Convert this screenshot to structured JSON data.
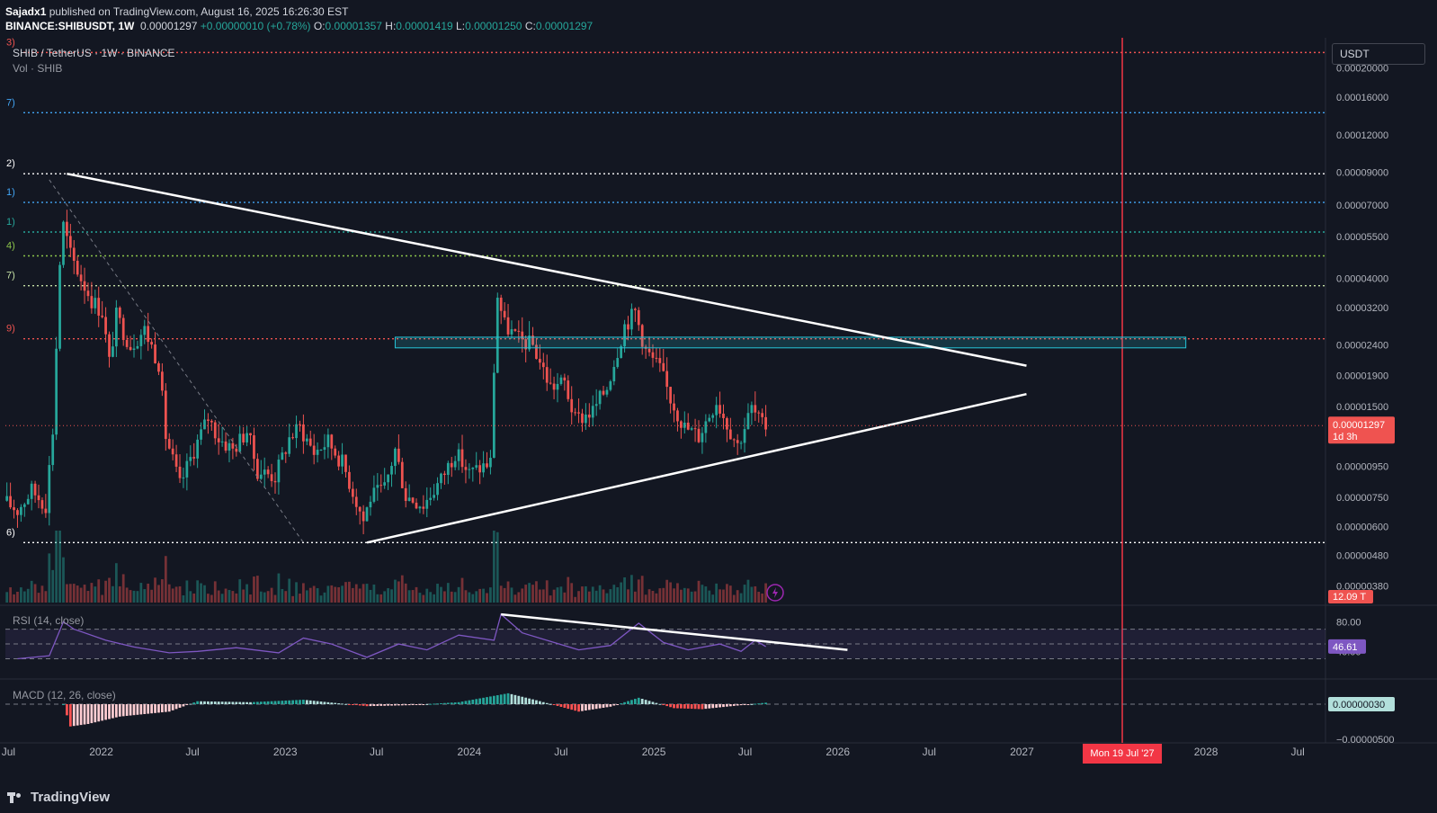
{
  "header": {
    "publisher": "Sajadx1",
    "published_text": "published on TradingView.com, August 16, 2025 16:26:30 EST",
    "symbol_line": "BINANCE:SHIBUSDT, 1W",
    "last_price": "0.00001297",
    "change": "+0.00000010 (+0.78%)",
    "o_label": "O:",
    "o_value": "0.00001357",
    "h_label": "H:",
    "h_value": "0.00001419",
    "l_label": "L:",
    "l_value": "0.00001250",
    "c_label": "C:",
    "c_value": "0.00001297"
  },
  "pane_legend": {
    "title": "SHIB / TetherUS · 1W · BINANCE",
    "volume": "Vol · SHIB",
    "unit_button": "USDT",
    "rsi": "RSI (14, close)",
    "macd": "MACD (12, 26, close)"
  },
  "colors": {
    "background": "#131722",
    "up": "#26a69a",
    "down": "#ef5350",
    "trendline": "#ffffff",
    "rsi_line": "#7e57c2",
    "zone": "#26c6da",
    "date_marker": "#f23645"
  },
  "level_labels": [
    {
      "text": "3)",
      "price": 0.000225,
      "color": "#ef5350",
      "dash_color": "#ef5350"
    },
    {
      "text": "7)",
      "price": 0.000142,
      "color": "#42a5f5",
      "dash_color": "#42a5f5"
    },
    {
      "text": "2)",
      "price": 8.9e-05,
      "color": "#ffffff",
      "dash_color": "#ffffff"
    },
    {
      "text": "1)",
      "price": 7.15e-05,
      "color": "#42a5f5",
      "dash_color": "#42a5f5"
    },
    {
      "text": "1)",
      "price": 5.7e-05,
      "color": "#26a69a",
      "dash_color": "#26a69a"
    },
    {
      "text": "4)",
      "price": 4.75e-05,
      "color": "#8bc34a",
      "dash_color": "#8bc34a"
    },
    {
      "text": "7)",
      "price": 3.78e-05,
      "color": "#c5e1a5",
      "dash_color": "#c5e1a5"
    },
    {
      "text": "9)",
      "price": 2.52e-05,
      "color": "#ef5350",
      "dash_color": "#ef5350"
    },
    {
      "text": "6)",
      "price": 5.3e-06,
      "color": "#ffffff",
      "dash_color": "#ffffff"
    }
  ],
  "chart_data": {
    "type": "candlestick",
    "symbol": "SHIB / TetherUS",
    "timeframe": "1W",
    "exchange": "BINANCE",
    "y_scale": "log",
    "y_ticks": [
      "0.00020000",
      "0.00016000",
      "0.00012000",
      "0.00009000",
      "0.00007000",
      "0.00005500",
      "0.00004000",
      "0.00003200",
      "0.00002400",
      "0.00001900",
      "0.00001500",
      "0.00000950",
      "0.00000750",
      "0.00000600",
      "0.00000480",
      "0.00000380"
    ],
    "y_tick_values": [
      0.0002,
      0.00016,
      0.00012,
      9e-05,
      7e-05,
      5.5e-05,
      4e-05,
      3.2e-05,
      2.4e-05,
      1.9e-05,
      1.5e-05,
      9.5e-06,
      7.5e-06,
      6e-06,
      4.8e-06,
      3.8e-06
    ],
    "x_ticks": [
      "Jul",
      "2022",
      "Jul",
      "2023",
      "Jul",
      "2024",
      "Jul",
      "2025",
      "Jul",
      "2026",
      "Jul",
      "2027",
      "2028",
      "Jul"
    ],
    "x_tick_dates": [
      "2021-07-01",
      "2022-01-01",
      "2022-07-01",
      "2023-01-01",
      "2023-07-01",
      "2024-01-01",
      "2024-07-01",
      "2025-01-01",
      "2025-07-01",
      "2026-01-01",
      "2026-07-01",
      "2027-01-01",
      "2028-01-01",
      "2028-07-01"
    ],
    "x_range": [
      "2021-06-25",
      "2028-08-25"
    ],
    "current_price_label": "0.00001297",
    "current_price": 1.297e-05,
    "countdown_label": "1d 3h",
    "volume_label": "12.09 T",
    "date_marker_label": "Mon 19 Jul '27",
    "date_marker": "2027-07-19",
    "price_path": [
      [
        "2021-06-28",
        7.3e-06
      ],
      [
        "2021-07-26",
        6.8e-06
      ],
      [
        "2021-08-23",
        7.9e-06
      ],
      [
        "2021-09-20",
        7.1e-06
      ],
      [
        "2021-10-04",
        1.25e-05
      ],
      [
        "2021-10-18",
        4.5e-05
      ],
      [
        "2021-10-25",
        6e-05
      ],
      [
        "2021-11-08",
        4.8e-05
      ],
      [
        "2021-11-29",
        4e-05
      ],
      [
        "2021-12-20",
        3.4e-05
      ],
      [
        "2022-01-10",
        3.1e-05
      ],
      [
        "2022-01-24",
        2.1e-05
      ],
      [
        "2022-02-07",
        3e-05
      ],
      [
        "2022-03-07",
        2.4e-05
      ],
      [
        "2022-04-04",
        2.7e-05
      ],
      [
        "2022-05-02",
        2.1e-05
      ],
      [
        "2022-05-16",
        1.2e-05
      ],
      [
        "2022-06-13",
        8.2e-06
      ],
      [
        "2022-07-11",
        1.08e-05
      ],
      [
        "2022-08-08",
        1.38e-05
      ],
      [
        "2022-08-29",
        1.18e-05
      ],
      [
        "2022-09-26",
        1.08e-05
      ],
      [
        "2022-10-24",
        1.25e-05
      ],
      [
        "2022-11-14",
        9.2e-06
      ],
      [
        "2022-12-19",
        8.8e-06
      ],
      [
        "2023-01-16",
        1.18e-05
      ],
      [
        "2023-02-06",
        1.28e-05
      ],
      [
        "2023-03-06",
        1.06e-05
      ],
      [
        "2023-04-03",
        1.15e-05
      ],
      [
        "2023-05-01",
        9.8e-06
      ],
      [
        "2023-06-12",
        6.3e-06
      ],
      [
        "2023-06-26",
        7.5e-06
      ],
      [
        "2023-07-24",
        8e-06
      ],
      [
        "2023-08-14",
        1.08e-05
      ],
      [
        "2023-09-04",
        7.6e-06
      ],
      [
        "2023-10-09",
        7.1e-06
      ],
      [
        "2023-11-13",
        8.6e-06
      ],
      [
        "2023-12-11",
        1.06e-05
      ],
      [
        "2024-01-08",
        9e-06
      ],
      [
        "2024-02-19",
        9.8e-06
      ],
      [
        "2024-02-26",
        2e-05
      ],
      [
        "2024-03-04",
        3.5e-05
      ],
      [
        "2024-03-18",
        2.8e-05
      ],
      [
        "2024-04-15",
        2.5e-05
      ],
      [
        "2024-05-13",
        2.4e-05
      ],
      [
        "2024-06-17",
        1.75e-05
      ],
      [
        "2024-07-15",
        1.8e-05
      ],
      [
        "2024-08-05",
        1.35e-05
      ],
      [
        "2024-09-09",
        1.45e-05
      ],
      [
        "2024-10-07",
        1.75e-05
      ],
      [
        "2024-11-11",
        2.8e-05
      ],
      [
        "2024-12-02",
        3.1e-05
      ],
      [
        "2024-12-23",
        2.3e-05
      ],
      [
        "2025-01-20",
        2e-05
      ],
      [
        "2025-02-10",
        1.6e-05
      ],
      [
        "2025-03-10",
        1.28e-05
      ],
      [
        "2025-04-07",
        1.2e-05
      ],
      [
        "2025-05-12",
        1.58e-05
      ],
      [
        "2025-06-02",
        1.32e-05
      ],
      [
        "2025-06-23",
        1.12e-05
      ],
      [
        "2025-07-21",
        1.48e-05
      ],
      [
        "2025-08-11",
        1.297e-05
      ]
    ],
    "trendlines": [
      {
        "name": "descending-resistance",
        "from": [
          "2021-10-25",
          8.9e-05
        ],
        "to": [
          "2027-01-10",
          2.05e-05
        ]
      },
      {
        "name": "ascending-support",
        "from": [
          "2023-06-12",
          5.3e-06
        ],
        "to": [
          "2027-01-10",
          1.65e-05
        ]
      }
    ],
    "zone": {
      "from": "2023-08-07",
      "to": "2027-11-22",
      "high": 2.55e-05,
      "low": 2.35e-05
    },
    "rsi": {
      "params": "RSI (14, close)",
      "current": 46.61,
      "tick_labels": [
        "80.00",
        "40.00"
      ],
      "tick_values": [
        80,
        40
      ],
      "bands": [
        70,
        50,
        30
      ],
      "values": [
        [
          "2021-07-19",
          30
        ],
        [
          "2021-09-20",
          34
        ],
        [
          "2021-10-18",
          80
        ],
        [
          "2021-11-08",
          70
        ],
        [
          "2022-01-10",
          55
        ],
        [
          "2022-03-07",
          46
        ],
        [
          "2022-05-16",
          38
        ],
        [
          "2022-07-11",
          40
        ],
        [
          "2022-09-26",
          45
        ],
        [
          "2022-12-19",
          38
        ],
        [
          "2023-02-06",
          58
        ],
        [
          "2023-04-03",
          50
        ],
        [
          "2023-06-12",
          32
        ],
        [
          "2023-08-14",
          50
        ],
        [
          "2023-10-09",
          42
        ],
        [
          "2023-12-11",
          62
        ],
        [
          "2024-02-19",
          55
        ],
        [
          "2024-03-04",
          90
        ],
        [
          "2024-04-15",
          65
        ],
        [
          "2024-06-17",
          52
        ],
        [
          "2024-08-05",
          42
        ],
        [
          "2024-10-07",
          48
        ],
        [
          "2024-12-02",
          78
        ],
        [
          "2025-01-20",
          52
        ],
        [
          "2025-03-10",
          42
        ],
        [
          "2025-05-12",
          50
        ],
        [
          "2025-06-23",
          40
        ],
        [
          "2025-07-21",
          55
        ],
        [
          "2025-08-11",
          46.61
        ]
      ],
      "trendline": {
        "from": [
          "2024-03-04",
          90
        ],
        "to": [
          "2026-01-20",
          42
        ]
      }
    },
    "macd": {
      "params": "MACD (12, 26, close)",
      "current_label": "0.00000030",
      "tick_label": "−0.00000500",
      "histogram": [
        [
          "2021-10-18",
          0
        ],
        [
          "2021-11-01",
          -4.5e-06
        ],
        [
          "2021-12-06",
          -4e-06
        ],
        [
          "2022-02-07",
          -2.5e-06
        ],
        [
          "2022-05-16",
          -1.5e-06
        ],
        [
          "2022-07-11",
          6e-07
        ],
        [
          "2022-10-24",
          4e-07
        ],
        [
          "2023-02-06",
          9e-07
        ],
        [
          "2023-06-12",
          -4e-07
        ],
        [
          "2023-09-04",
          -2e-07
        ],
        [
          "2023-12-11",
          4e-07
        ],
        [
          "2024-03-18",
          2.2e-06
        ],
        [
          "2024-05-13",
          8e-07
        ],
        [
          "2024-08-05",
          -1.5e-06
        ],
        [
          "2024-10-07",
          -5e-07
        ],
        [
          "2024-12-02",
          1.3e-06
        ],
        [
          "2025-02-10",
          -8e-07
        ],
        [
          "2025-04-07",
          -1e-06
        ],
        [
          "2025-06-23",
          -2e-07
        ],
        [
          "2025-08-11",
          3e-07
        ]
      ]
    }
  }
}
